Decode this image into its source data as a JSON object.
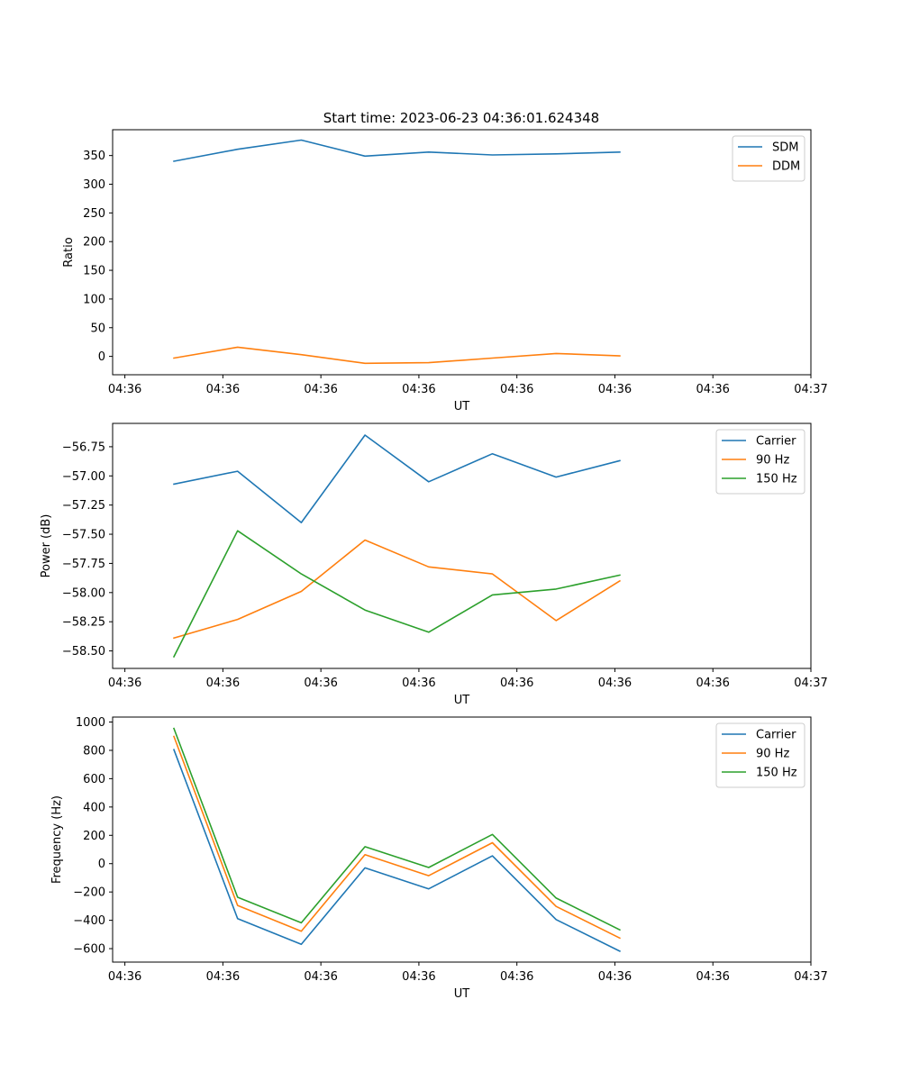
{
  "title": "Start time: 2023-06-23 04:36:01.624348",
  "chart_data": [
    {
      "type": "line",
      "name": "ratio",
      "xlabel": "UT",
      "ylabel": "Ratio",
      "x_tick_labels": [
        "04:36",
        "04:36",
        "04:36",
        "04:36",
        "04:36",
        "04:36",
        "04:36",
        "04:37"
      ],
      "x_ticks_s": [
        0,
        2,
        4,
        6,
        8,
        10,
        12,
        14
      ],
      "xlim_s": [
        -0.25,
        14.0
      ],
      "x_s": [
        1.0,
        2.3,
        3.6,
        4.9,
        6.2,
        7.5,
        8.8,
        10.1
      ],
      "ylim": [
        -32,
        395
      ],
      "y_ticks": [
        0,
        50,
        100,
        150,
        200,
        250,
        300,
        350
      ],
      "legend_position": "upper right",
      "series": [
        {
          "name": "SDM",
          "color": "#1f77b4",
          "values": [
            340,
            361,
            377,
            349,
            356,
            351,
            353,
            356
          ]
        },
        {
          "name": "DDM",
          "color": "#ff7f0e",
          "values": [
            -3,
            16,
            3,
            -12,
            -11,
            -3,
            5,
            1
          ]
        }
      ]
    },
    {
      "type": "line",
      "name": "power",
      "xlabel": "UT",
      "ylabel": "Power (dB)",
      "x_tick_labels": [
        "04:36",
        "04:36",
        "04:36",
        "04:36",
        "04:36",
        "04:36",
        "04:36",
        "04:37"
      ],
      "x_ticks_s": [
        0,
        2,
        4,
        6,
        8,
        10,
        12,
        14
      ],
      "xlim_s": [
        -0.25,
        14.0
      ],
      "x_s": [
        1.0,
        2.3,
        3.6,
        4.9,
        6.2,
        7.5,
        8.8,
        10.1
      ],
      "ylim": [
        -58.65,
        -56.55
      ],
      "y_ticks": [
        -58.5,
        -58.25,
        -58.0,
        -57.75,
        -57.5,
        -57.25,
        -57.0,
        -56.75
      ],
      "y_tick_labels": [
        "−58.50",
        "−58.25",
        "−58.00",
        "−57.75",
        "−57.50",
        "−57.25",
        "−57.00",
        "−56.75"
      ],
      "legend_position": "upper right",
      "series": [
        {
          "name": "Carrier",
          "color": "#1f77b4",
          "values": [
            -57.07,
            -56.96,
            -57.4,
            -56.65,
            -57.05,
            -56.81,
            -57.01,
            -56.87
          ]
        },
        {
          "name": "90 Hz",
          "color": "#ff7f0e",
          "values": [
            -58.39,
            -58.23,
            -57.99,
            -57.55,
            -57.78,
            -57.84,
            -58.24,
            -57.9
          ]
        },
        {
          "name": "150 Hz",
          "color": "#2ca02c",
          "values": [
            -58.55,
            -57.47,
            -57.84,
            -58.15,
            -58.34,
            -58.02,
            -57.97,
            -57.85
          ]
        }
      ]
    },
    {
      "type": "line",
      "name": "frequency",
      "xlabel": "UT",
      "ylabel": "Frequency (Hz)",
      "x_tick_labels": [
        "04:36",
        "04:36",
        "04:36",
        "04:36",
        "04:36",
        "04:36",
        "04:36",
        "04:37"
      ],
      "x_ticks_s": [
        0,
        2,
        4,
        6,
        8,
        10,
        12,
        14
      ],
      "xlim_s": [
        -0.25,
        14.0
      ],
      "x_s": [
        1.0,
        2.3,
        3.6,
        4.9,
        6.2,
        7.5,
        8.8,
        10.1
      ],
      "ylim": [
        -695,
        1035
      ],
      "y_ticks": [
        -600,
        -400,
        -200,
        0,
        200,
        400,
        600,
        800,
        1000
      ],
      "y_tick_labels": [
        "−600",
        "−400",
        "−200",
        "0",
        "200",
        "400",
        "600",
        "800",
        "1000"
      ],
      "legend_position": "upper right",
      "series": [
        {
          "name": "Carrier",
          "color": "#1f77b4",
          "values": [
            805,
            -388,
            -570,
            -30,
            -178,
            55,
            -395,
            -618
          ]
        },
        {
          "name": "90 Hz",
          "color": "#ff7f0e",
          "values": [
            898,
            -295,
            -477,
            63,
            -85,
            148,
            -302,
            -525
          ]
        },
        {
          "name": "150 Hz",
          "color": "#2ca02c",
          "values": [
            955,
            -237,
            -418,
            120,
            -27,
            206,
            -243,
            -467
          ]
        }
      ]
    }
  ]
}
